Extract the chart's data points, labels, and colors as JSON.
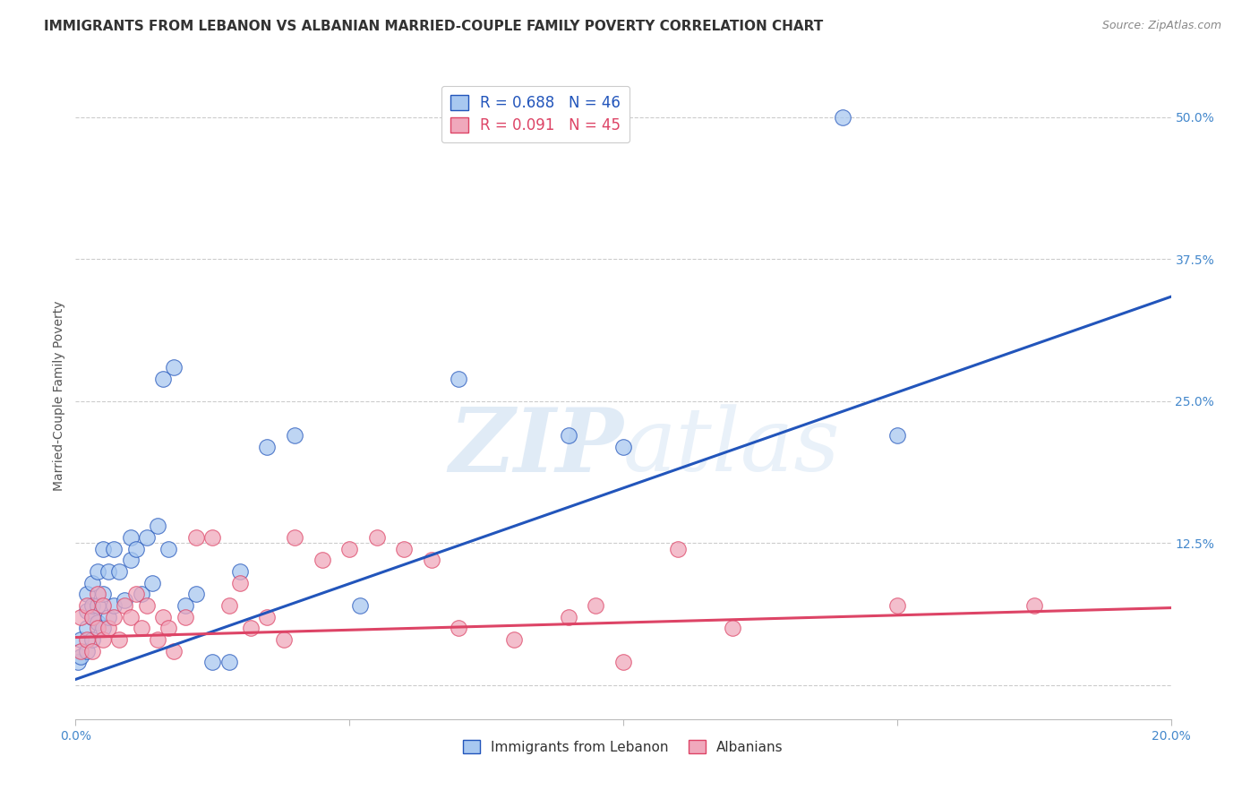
{
  "title": "IMMIGRANTS FROM LEBANON VS ALBANIAN MARRIED-COUPLE FAMILY POVERTY CORRELATION CHART",
  "source": "Source: ZipAtlas.com",
  "ylabel_label": "Married-Couple Family Poverty",
  "x_min": 0.0,
  "x_max": 0.2,
  "y_min": -0.03,
  "y_max": 0.54,
  "x_ticks": [
    0.0,
    0.05,
    0.1,
    0.15,
    0.2
  ],
  "x_tick_labels": [
    "0.0%",
    "",
    "",
    "",
    "20.0%"
  ],
  "y_ticks": [
    0.0,
    0.125,
    0.25,
    0.375,
    0.5
  ],
  "y_tick_labels": [
    "",
    "12.5%",
    "25.0%",
    "37.5%",
    "50.0%"
  ],
  "legend_blue_r": "R = 0.688",
  "legend_blue_n": "N = 46",
  "legend_pink_r": "R = 0.091",
  "legend_pink_n": "N = 45",
  "legend_blue_label": "Immigrants from Lebanon",
  "legend_pink_label": "Albanians",
  "blue_color": "#A8C8F0",
  "pink_color": "#F0A8BC",
  "blue_line_color": "#2255BB",
  "pink_line_color": "#DD4466",
  "blue_scatter_x": [
    0.0005,
    0.001,
    0.001,
    0.002,
    0.002,
    0.002,
    0.002,
    0.003,
    0.003,
    0.003,
    0.003,
    0.004,
    0.004,
    0.004,
    0.005,
    0.005,
    0.005,
    0.006,
    0.006,
    0.007,
    0.007,
    0.008,
    0.009,
    0.01,
    0.01,
    0.011,
    0.012,
    0.013,
    0.014,
    0.015,
    0.016,
    0.017,
    0.018,
    0.02,
    0.022,
    0.025,
    0.028,
    0.03,
    0.035,
    0.04,
    0.052,
    0.07,
    0.09,
    0.1,
    0.14,
    0.15
  ],
  "blue_scatter_y": [
    0.02,
    0.025,
    0.04,
    0.03,
    0.05,
    0.065,
    0.08,
    0.04,
    0.06,
    0.07,
    0.09,
    0.055,
    0.07,
    0.1,
    0.05,
    0.08,
    0.12,
    0.06,
    0.1,
    0.07,
    0.12,
    0.1,
    0.075,
    0.11,
    0.13,
    0.12,
    0.08,
    0.13,
    0.09,
    0.14,
    0.27,
    0.12,
    0.28,
    0.07,
    0.08,
    0.02,
    0.02,
    0.1,
    0.21,
    0.22,
    0.07,
    0.27,
    0.22,
    0.21,
    0.5,
    0.22
  ],
  "pink_scatter_x": [
    0.001,
    0.001,
    0.002,
    0.002,
    0.003,
    0.003,
    0.004,
    0.004,
    0.005,
    0.005,
    0.006,
    0.007,
    0.008,
    0.009,
    0.01,
    0.011,
    0.012,
    0.013,
    0.015,
    0.016,
    0.017,
    0.018,
    0.02,
    0.022,
    0.025,
    0.028,
    0.03,
    0.032,
    0.035,
    0.038,
    0.04,
    0.045,
    0.05,
    0.055,
    0.06,
    0.065,
    0.07,
    0.08,
    0.09,
    0.095,
    0.1,
    0.11,
    0.12,
    0.15,
    0.175
  ],
  "pink_scatter_y": [
    0.03,
    0.06,
    0.04,
    0.07,
    0.03,
    0.06,
    0.05,
    0.08,
    0.04,
    0.07,
    0.05,
    0.06,
    0.04,
    0.07,
    0.06,
    0.08,
    0.05,
    0.07,
    0.04,
    0.06,
    0.05,
    0.03,
    0.06,
    0.13,
    0.13,
    0.07,
    0.09,
    0.05,
    0.06,
    0.04,
    0.13,
    0.11,
    0.12,
    0.13,
    0.12,
    0.11,
    0.05,
    0.04,
    0.06,
    0.07,
    0.02,
    0.12,
    0.05,
    0.07,
    0.07
  ],
  "blue_line_x": [
    0.0,
    0.2
  ],
  "blue_line_y": [
    0.005,
    0.342
  ],
  "pink_line_x": [
    0.0,
    0.2
  ],
  "pink_line_y": [
    0.042,
    0.068
  ],
  "grid_color": "#CCCCCC",
  "background_color": "#FFFFFF",
  "title_fontsize": 11,
  "source_fontsize": 9,
  "tick_fontsize": 10,
  "label_fontsize": 10,
  "tick_color": "#4488CC"
}
